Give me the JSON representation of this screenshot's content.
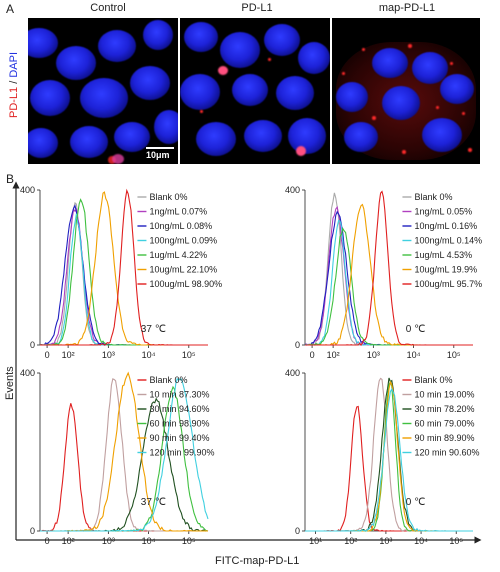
{
  "panel_a": {
    "letter": "A",
    "ylabel_pd": "PD-L1",
    "ylabel_sep": " / ",
    "ylabel_dapi": "DAPI",
    "columns": [
      "Control",
      "PD-L1",
      "map-PD-L1"
    ],
    "scale_bar": "10μm"
  },
  "panel_b": {
    "letter": "B",
    "ylabel": "Events",
    "xlabel": "FITC-map-PD-L1"
  },
  "chart_data": [
    {
      "type": "line",
      "panel": "top-left",
      "x_scale": "log",
      "xlim": [
        20,
        300000
      ],
      "ylim": [
        0,
        400
      ],
      "x_ticks": [
        "0",
        "10²",
        "10³",
        "10⁴",
        "10⁵"
      ],
      "y_ticks": [
        "0",
        "400"
      ],
      "annotation": "37 ℃",
      "series": [
        {
          "name": "Blank 0%",
          "color": "#aaaaaa",
          "peak_x": 150,
          "peak_y": 370
        },
        {
          "name": "1ng/mL 0.07%",
          "color": "#b040c0",
          "peak_x": 150,
          "peak_y": 350
        },
        {
          "name": "10ng/mL 0.08%",
          "color": "#2020c0",
          "peak_x": 140,
          "peak_y": 355
        },
        {
          "name": "100ng/mL 0.09%",
          "color": "#40d0e0",
          "peak_x": 160,
          "peak_y": 330
        },
        {
          "name": "1ug/mL 4.22%",
          "color": "#40c040",
          "peak_x": 210,
          "peak_y": 375
        },
        {
          "name": "10ug/mL 22.10%",
          "color": "#f0a000",
          "peak_x": 800,
          "peak_y": 390
        },
        {
          "name": "100ug/mL 98.90%",
          "color": "#e02020",
          "peak_x": 3000,
          "peak_y": 395
        }
      ]
    },
    {
      "type": "line",
      "panel": "top-right",
      "x_scale": "log",
      "xlim": [
        20,
        300000
      ],
      "ylim": [
        0,
        400
      ],
      "x_ticks": [
        "0",
        "10²",
        "10³",
        "10⁴",
        "10⁵"
      ],
      "y_ticks": [
        "0",
        "400"
      ],
      "annotation": "0 ℃",
      "series": [
        {
          "name": "Blank 0%",
          "color": "#aaaaaa",
          "peak_x": 110,
          "peak_y": 390
        },
        {
          "name": "1ng/mL 0.05%",
          "color": "#b040c0",
          "peak_x": 120,
          "peak_y": 350
        },
        {
          "name": "10ng/mL 0.16%",
          "color": "#2020c0",
          "peak_x": 130,
          "peak_y": 340
        },
        {
          "name": "100ng/mL 0.14%",
          "color": "#40d0e0",
          "peak_x": 140,
          "peak_y": 320
        },
        {
          "name": "1ug/mL 4.53%",
          "color": "#40c040",
          "peak_x": 180,
          "peak_y": 300
        },
        {
          "name": "10ug/mL 19.9%",
          "color": "#f0a000",
          "peak_x": 500,
          "peak_y": 360
        },
        {
          "name": "100ug/mL 95.7%",
          "color": "#e02020",
          "peak_x": 1600,
          "peak_y": 390
        }
      ]
    },
    {
      "type": "line",
      "panel": "bottom-left",
      "x_scale": "log",
      "xlim": [
        20,
        300000
      ],
      "ylim": [
        0,
        400
      ],
      "x_ticks": [
        "0",
        "10²",
        "10³",
        "10⁴",
        "10⁵"
      ],
      "y_ticks": [
        "0",
        "400"
      ],
      "annotation": "37 ℃",
      "series": [
        {
          "name": "Blank 0%",
          "color": "#e02020",
          "peak_x": 120,
          "peak_y": 320
        },
        {
          "name": "10 min 87.30%",
          "color": "#c0a0a0",
          "peak_x": 1400,
          "peak_y": 390
        },
        {
          "name": "30 min 94.60%",
          "color": "#205020",
          "peak_x": 15000,
          "peak_y": 330
        },
        {
          "name": "60 min 98.90%",
          "color": "#40c040",
          "peak_x": 40000,
          "peak_y": 360
        },
        {
          "name": "90 min 99.40%",
          "color": "#f0a000",
          "peak_x": 3000,
          "peak_y": 395
        },
        {
          "name": "120 min 99.90%",
          "color": "#40d0e0",
          "peak_x": 60000,
          "peak_y": 385
        }
      ]
    },
    {
      "type": "line",
      "panel": "bottom-right",
      "x_scale": "log",
      "xlim": [
        5,
        300000
      ],
      "ylim": [
        0,
        400
      ],
      "x_ticks": [
        "10¹",
        "10²",
        "10³",
        "10⁴",
        "10⁵"
      ],
      "y_ticks": [
        "0",
        "400"
      ],
      "annotation": "0 ℃",
      "series": [
        {
          "name": "Blank 0%",
          "color": "#e02020",
          "peak_x": 150,
          "peak_y": 320
        },
        {
          "name": "10 min 19.00%",
          "color": "#c0a0a0",
          "peak_x": 700,
          "peak_y": 390
        },
        {
          "name": "30 min 78.20%",
          "color": "#205020",
          "peak_x": 1300,
          "peak_y": 385
        },
        {
          "name": "60 min 79.00%",
          "color": "#40c040",
          "peak_x": 1300,
          "peak_y": 380
        },
        {
          "name": "90 min 89.90%",
          "color": "#f0a000",
          "peak_x": 1400,
          "peak_y": 370
        },
        {
          "name": "120 min 90.60%",
          "color": "#40d0e0",
          "peak_x": 1500,
          "peak_y": 360
        }
      ]
    }
  ]
}
